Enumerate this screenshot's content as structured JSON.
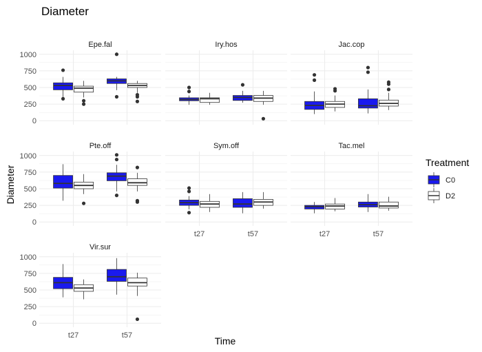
{
  "chart_data": {
    "type": "box",
    "title": "Diameter",
    "xlabel": "Time",
    "ylabel": "Diameter",
    "ylim": [
      0,
      1000
    ],
    "yticks": [
      "0",
      "250",
      "500",
      "750",
      "1000"
    ],
    "categories": [
      "t27",
      "t57"
    ],
    "legend": {
      "title": "Treatment",
      "position": "right",
      "entries": [
        {
          "name": "C0",
          "color": "#1a1aee"
        },
        {
          "name": "D2",
          "color": "#ffffff"
        }
      ]
    },
    "grid": true,
    "panels": [
      {
        "label": "Epe.fal",
        "boxes": {
          "t27": {
            "C0": {
              "min": 340,
              "q1": 465,
              "median": 530,
              "q3": 570,
              "max": 660,
              "outliers": [
                330,
                760
              ]
            },
            "D2": {
              "min": 350,
              "q1": 430,
              "median": 490,
              "q3": 520,
              "max": 600,
              "outliers": [
                300,
                250
              ]
            }
          },
          "t57": {
            "C0": {
              "min": 460,
              "q1": 560,
              "median": 600,
              "q3": 630,
              "max": 660,
              "outliers": [
                360,
                1000
              ]
            },
            "D2": {
              "min": 420,
              "q1": 500,
              "median": 530,
              "q3": 560,
              "max": 600,
              "outliers": [
                390,
                360,
                290
              ]
            }
          }
        }
      },
      {
        "label": "Iry.hos",
        "boxes": {
          "t27": {
            "C0": {
              "min": 240,
              "q1": 300,
              "median": 320,
              "q3": 345,
              "max": 380,
              "outliers": [
                440,
                500
              ]
            },
            "D2": {
              "min": 240,
              "q1": 275,
              "median": 330,
              "q3": 345,
              "max": 420,
              "outliers": []
            }
          },
          "t57": {
            "C0": {
              "min": 270,
              "q1": 305,
              "median": 350,
              "q3": 380,
              "max": 450,
              "outliers": [
                540
              ]
            },
            "D2": {
              "min": 240,
              "q1": 290,
              "median": 340,
              "q3": 380,
              "max": 450,
              "outliers": [
                30
              ]
            }
          }
        }
      },
      {
        "label": "Jac.cop",
        "boxes": {
          "t27": {
            "C0": {
              "min": 100,
              "q1": 170,
              "median": 230,
              "q3": 290,
              "max": 440,
              "outliers": [
                610,
                690
              ]
            },
            "D2": {
              "min": 140,
              "q1": 200,
              "median": 250,
              "q3": 290,
              "max": 380,
              "outliers": [
                450,
                480
              ]
            }
          },
          "t57": {
            "C0": {
              "min": 110,
              "q1": 190,
              "median": 225,
              "q3": 330,
              "max": 470,
              "outliers": [
                730,
                800
              ]
            },
            "D2": {
              "min": 160,
              "q1": 220,
              "median": 260,
              "q3": 310,
              "max": 420,
              "outliers": [
                470,
                550,
                580
              ]
            }
          }
        }
      },
      {
        "label": "Pte.off",
        "boxes": {
          "t27": {
            "C0": {
              "min": 320,
              "q1": 510,
              "median": 580,
              "q3": 700,
              "max": 870,
              "outliers": []
            },
            "D2": {
              "min": 420,
              "q1": 500,
              "median": 550,
              "q3": 600,
              "max": 720,
              "outliers": [
                280
              ]
            }
          },
          "t57": {
            "C0": {
              "min": 460,
              "q1": 620,
              "median": 690,
              "q3": 740,
              "max": 860,
              "outliers": [
                400,
                940,
                1010
              ]
            },
            "D2": {
              "min": 460,
              "q1": 550,
              "median": 590,
              "q3": 650,
              "max": 740,
              "outliers": [
                820,
                320,
                300
              ]
            }
          }
        }
      },
      {
        "label": "Sym.off",
        "boxes": {
          "t27": {
            "C0": {
              "min": 190,
              "q1": 250,
              "median": 290,
              "q3": 330,
              "max": 390,
              "outliers": [
                460,
                510,
                140
              ]
            },
            "D2": {
              "min": 150,
              "q1": 220,
              "median": 270,
              "q3": 310,
              "max": 420,
              "outliers": []
            }
          },
          "t57": {
            "C0": {
              "min": 130,
              "q1": 220,
              "median": 270,
              "q3": 350,
              "max": 450,
              "outliers": []
            },
            "D2": {
              "min": 200,
              "q1": 250,
              "median": 300,
              "q3": 340,
              "max": 450,
              "outliers": []
            }
          }
        }
      },
      {
        "label": "Tac.mel",
        "boxes": {
          "t27": {
            "C0": {
              "min": 130,
              "q1": 195,
              "median": 230,
              "q3": 250,
              "max": 300,
              "outliers": []
            },
            "D2": {
              "min": 160,
              "q1": 195,
              "median": 240,
              "q3": 270,
              "max": 360,
              "outliers": []
            }
          },
          "t57": {
            "C0": {
              "min": 150,
              "q1": 225,
              "median": 260,
              "q3": 300,
              "max": 420,
              "outliers": []
            },
            "D2": {
              "min": 170,
              "q1": 210,
              "median": 240,
              "q3": 300,
              "max": 380,
              "outliers": []
            }
          }
        }
      },
      {
        "label": "Vir.sur",
        "boxes": {
          "t27": {
            "C0": {
              "min": 390,
              "q1": 520,
              "median": 610,
              "q3": 690,
              "max": 890,
              "outliers": []
            },
            "D2": {
              "min": 360,
              "q1": 480,
              "median": 530,
              "q3": 580,
              "max": 660,
              "outliers": []
            }
          },
          "t57": {
            "C0": {
              "min": 430,
              "q1": 630,
              "median": 700,
              "q3": 810,
              "max": 980,
              "outliers": []
            },
            "D2": {
              "min": 410,
              "q1": 560,
              "median": 610,
              "q3": 680,
              "max": 760,
              "outliers": [
                60
              ]
            }
          }
        }
      }
    ]
  }
}
